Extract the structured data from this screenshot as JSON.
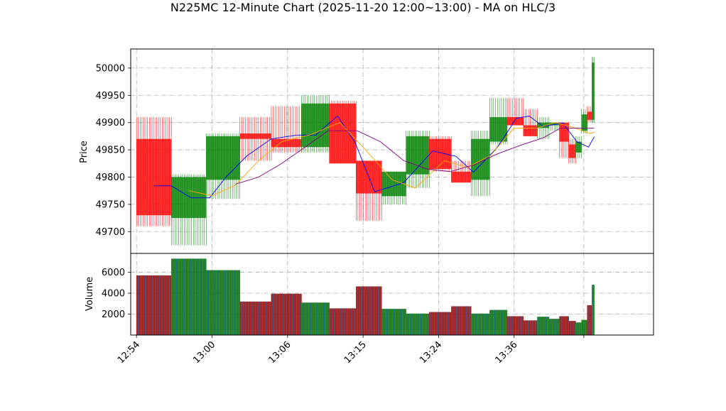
{
  "chart_data": {
    "type": "candlestick",
    "title": "N225MC 12-Minute Chart (2025-11-20 12:00~13:00) - MA on HLC/3",
    "price_panel": {
      "ylabel": "Price",
      "ylim": [
        49660,
        50035
      ],
      "yticks": [
        49700,
        49750,
        49800,
        49850,
        49900,
        49950,
        50000
      ],
      "grid": true
    },
    "volume_panel": {
      "ylabel": "Volume",
      "ylim": [
        0,
        7800
      ],
      "yticks": [
        2000,
        4000,
        6000
      ],
      "grid": true
    },
    "x_axis": {
      "xlim": [
        0,
        4.5
      ],
      "tick_positions": [
        0.05,
        0.7,
        1.35,
        2.0,
        2.65,
        3.3,
        3.9
      ],
      "tick_labels": [
        "12:54",
        "13:00",
        "13:06",
        "13:15",
        "13:24",
        "13:36",
        ""
      ]
    },
    "bars": [
      {
        "x0": 0.05,
        "x1": 0.35,
        "open": 49870,
        "high": 49910,
        "low": 49710,
        "close": 49730,
        "volume": 5700
      },
      {
        "x0": 0.35,
        "x1": 0.65,
        "open": 49725,
        "high": 49805,
        "low": 49675,
        "close": 49800,
        "volume": 7300
      },
      {
        "x0": 0.65,
        "x1": 0.94,
        "open": 49795,
        "high": 49880,
        "low": 49760,
        "close": 49875,
        "volume": 6200
      },
      {
        "x0": 0.94,
        "x1": 1.21,
        "open": 49880,
        "high": 49910,
        "low": 49830,
        "close": 49870,
        "volume": 3200
      },
      {
        "x0": 1.21,
        "x1": 1.47,
        "open": 49870,
        "high": 49930,
        "low": 49845,
        "close": 49855,
        "volume": 3950
      },
      {
        "x0": 1.47,
        "x1": 1.71,
        "open": 49855,
        "high": 49950,
        "low": 49845,
        "close": 49935,
        "volume": 3100
      },
      {
        "x0": 1.71,
        "x1": 1.94,
        "open": 49935,
        "high": 49940,
        "low": 49825,
        "close": 49825,
        "volume": 2550
      },
      {
        "x0": 1.94,
        "x1": 2.16,
        "open": 49830,
        "high": 49830,
        "low": 49720,
        "close": 49770,
        "volume": 4650
      },
      {
        "x0": 2.16,
        "x1": 2.37,
        "open": 49765,
        "high": 49810,
        "low": 49750,
        "close": 49810,
        "volume": 2500
      },
      {
        "x0": 2.37,
        "x1": 2.57,
        "open": 49805,
        "high": 49885,
        "low": 49780,
        "close": 49875,
        "volume": 2050
      },
      {
        "x0": 2.57,
        "x1": 2.76,
        "open": 49870,
        "high": 49875,
        "low": 49810,
        "close": 49815,
        "volume": 2200
      },
      {
        "x0": 2.76,
        "x1": 2.93,
        "open": 49810,
        "high": 49830,
        "low": 49790,
        "close": 49790,
        "volume": 2750
      },
      {
        "x0": 2.93,
        "x1": 3.09,
        "open": 49795,
        "high": 49885,
        "low": 49765,
        "close": 49870,
        "volume": 2050
      },
      {
        "x0": 3.09,
        "x1": 3.24,
        "open": 49865,
        "high": 49945,
        "low": 49860,
        "close": 49910,
        "volume": 2400
      },
      {
        "x0": 3.24,
        "x1": 3.38,
        "open": 49910,
        "high": 49945,
        "low": 49895,
        "close": 49895,
        "volume": 1800
      },
      {
        "x0": 3.38,
        "x1": 3.5,
        "open": 49895,
        "high": 49925,
        "low": 49875,
        "close": 49875,
        "volume": 1400
      },
      {
        "x0": 3.5,
        "x1": 3.6,
        "open": 49890,
        "high": 49910,
        "low": 49870,
        "close": 49900,
        "volume": 1750
      },
      {
        "x0": 3.6,
        "x1": 3.69,
        "open": 49895,
        "high": 49900,
        "low": 49885,
        "close": 49900,
        "volume": 1550
      },
      {
        "x0": 3.69,
        "x1": 3.77,
        "open": 49900,
        "high": 49900,
        "low": 49835,
        "close": 49865,
        "volume": 1800
      },
      {
        "x0": 3.77,
        "x1": 3.83,
        "open": 49860,
        "high": 49870,
        "low": 49825,
        "close": 49835,
        "volume": 1350
      },
      {
        "x0": 3.83,
        "x1": 3.88,
        "open": 49845,
        "high": 49875,
        "low": 49835,
        "close": 49865,
        "volume": 1200
      },
      {
        "x0": 3.88,
        "x1": 3.93,
        "open": 49885,
        "high": 49925,
        "low": 49880,
        "close": 49915,
        "volume": 1450
      },
      {
        "x0": 3.93,
        "x1": 3.97,
        "open": 49920,
        "high": 49930,
        "low": 49900,
        "close": 49905,
        "volume": 2850
      },
      {
        "x0": 3.97,
        "x1": 3.99,
        "open": 49905,
        "high": 50020,
        "low": 49900,
        "close": 50010,
        "volume": 4800
      }
    ],
    "series": [
      {
        "color": "#0000ff",
        "x": [
          0.2,
          0.35,
          0.52,
          0.68,
          0.82,
          1.0,
          1.21,
          1.43,
          1.59,
          1.78,
          1.93,
          2.1,
          2.35,
          2.6,
          2.8,
          2.95,
          3.15,
          3.32,
          3.43,
          3.55,
          3.72,
          3.84,
          3.94,
          3.99
        ],
        "values": [
          49784,
          49784,
          49762,
          49762,
          49800,
          49839,
          49870,
          49877,
          49877,
          49912,
          49864,
          49773,
          49790,
          49848,
          49838,
          49809,
          49853,
          49908,
          49912,
          49893,
          49899,
          49865,
          49855,
          49874
        ]
      },
      {
        "color": "#ffa500",
        "x": [
          0.5,
          0.7,
          0.9,
          1.1,
          1.3,
          1.55,
          1.8,
          2.0,
          2.25,
          2.45,
          2.7,
          2.9,
          3.1,
          3.3,
          3.5,
          3.65,
          3.8,
          3.95,
          3.99
        ],
        "values": [
          49775,
          49766,
          49785,
          49830,
          49865,
          49878,
          49900,
          49855,
          49795,
          49780,
          49830,
          49818,
          49840,
          49890,
          49890,
          49900,
          49892,
          49880,
          49882
        ]
      },
      {
        "color": "#800080",
        "x": [
          0.9,
          1.1,
          1.3,
          1.5,
          1.7,
          1.95,
          2.15,
          2.35,
          2.55,
          2.75,
          2.95,
          3.15,
          3.35,
          3.55,
          3.7,
          3.85,
          3.99
        ],
        "values": [
          49787,
          49800,
          49825,
          49855,
          49885,
          49885,
          49865,
          49830,
          49815,
          49810,
          49822,
          49842,
          49858,
          49872,
          49890,
          49890,
          49890
        ]
      }
    ]
  }
}
